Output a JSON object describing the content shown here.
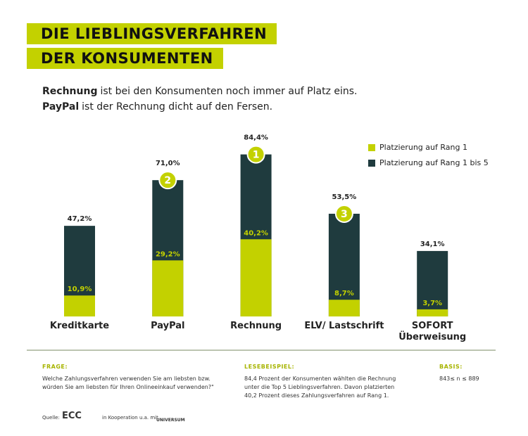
{
  "chart_data": {
    "type": "overlap-bar",
    "title": [
      "DIE LIEBLINGSVERFAHREN",
      "DER KONSUMENTEN"
    ],
    "subtitle": [
      [
        "Rechnung",
        "ist bei den Konsumenten noch immer auf Platz eins."
      ],
      [
        "PayPal",
        "ist der Rechnung dicht auf den Fersen."
      ]
    ],
    "categories": [
      "Kreditkarte",
      "PayPal",
      "Rechnung",
      "ELV/ Lastschrift",
      "SOFORT Überweisung"
    ],
    "series": [
      {
        "name": "Platzierung auf Rang 1 bis 5",
        "color": "#1f3b3e",
        "values": [
          47.2,
          71.0,
          84.4,
          53.5,
          34.1
        ],
        "value_labels": [
          "47,2%",
          "71,0%",
          "84,4%",
          "53,5%",
          "34,1%"
        ]
      },
      {
        "name": "Platzierung auf Rang 1",
        "color": "#c3d100",
        "values": [
          10.9,
          29.2,
          40.2,
          8.7,
          3.7
        ],
        "value_labels": [
          "10,9%",
          "29,2%",
          "40,2%",
          "8,7%",
          "3,7%"
        ]
      }
    ],
    "ranks": [
      null,
      2,
      1,
      3,
      null
    ]
  },
  "footer": {
    "question_label": "FRAGE:",
    "question": "Welche Zahlungsverfahren verwenden Sie am liebsten bzw. würden Sie am liebsten für Ihren Onlineeinkauf verwenden?\"",
    "example_label": "LESEBEISPIEL:",
    "example": "84,4 Prozent der Konsumenten wählten die Rechnung unter die Top 5 Lieblingsverfahren. Davon platzierten 40,2 Prozent dieses Zahlungsverfahren auf Rang 1.",
    "basis_label": "BASIS:",
    "basis": "843≤ n ≤ 889",
    "source_label": "Quelle:",
    "source": "ECC",
    "cooperation": "in Kooperation u.a. mit",
    "partner": "UNIVERSUM"
  }
}
